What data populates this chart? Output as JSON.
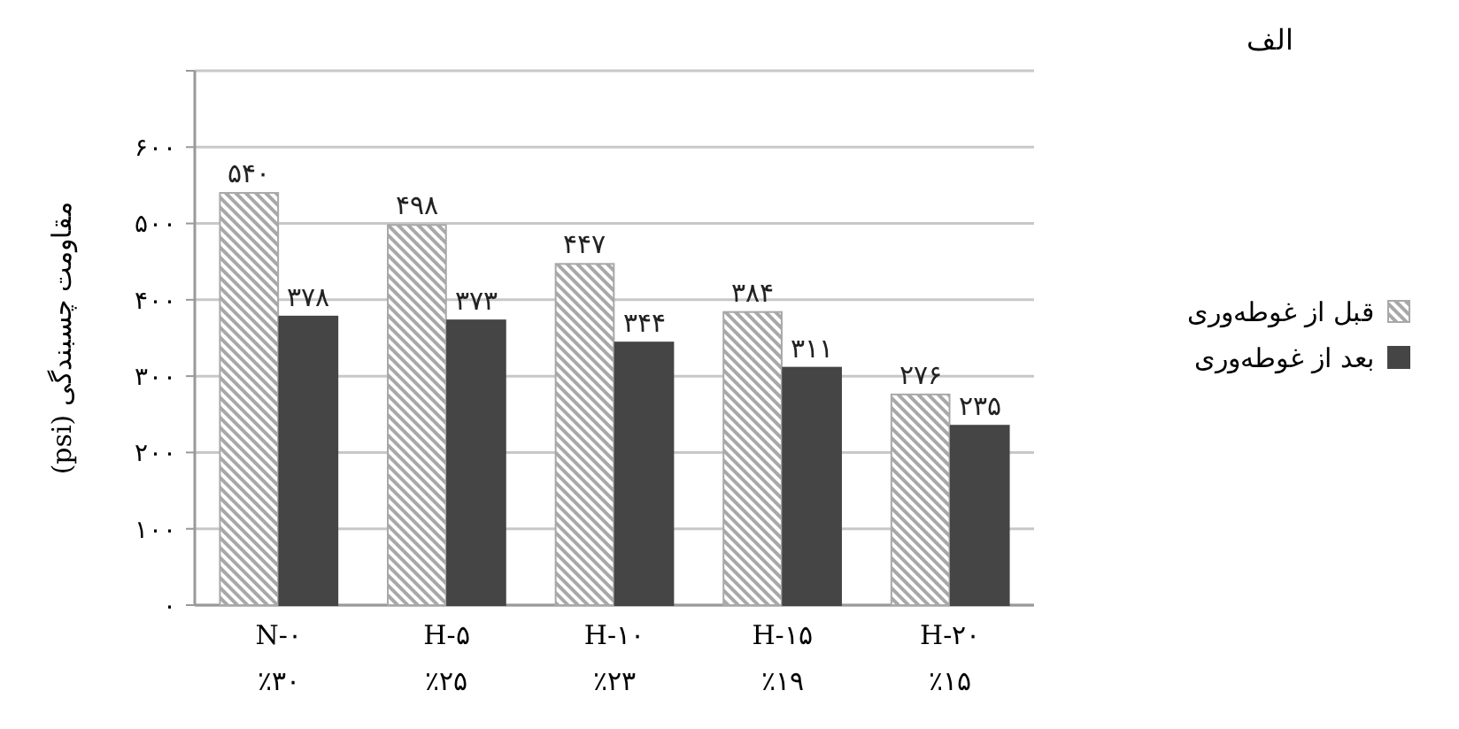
{
  "chart_data": {
    "type": "bar",
    "title": "الف",
    "ylabel": "مقاومت چسبندگی (psi)",
    "categories": [
      "N-۰\n٪۳۰",
      "H-۵\n٪۲۵",
      "H-۱۰\n٪۲۳",
      "H-۱۵\n٪۱۹",
      "H-۲۰\n٪۱۵"
    ],
    "series": [
      {
        "name": "قبل از غوطه‌وری",
        "color": "#a8a8a8",
        "values": [
          540,
          498,
          447,
          384,
          276
        ],
        "value_labels": [
          "۵۴۰",
          "۴۹۸",
          "۴۴۷",
          "۳۸۴",
          "۲۷۶"
        ]
      },
      {
        "name": "بعد از غوطه‌وری",
        "color": "#454545",
        "values": [
          378,
          373,
          344,
          311,
          235
        ],
        "value_labels": [
          "۳۷۸",
          "۳۷۳",
          "۳۴۴",
          "۳۱۱",
          "۲۳۵"
        ]
      }
    ],
    "ylim": [
      0,
      700
    ],
    "yticks": [
      {
        "value": 0,
        "label": "۰"
      },
      {
        "value": 100,
        "label": "۱۰۰"
      },
      {
        "value": 200,
        "label": "۲۰۰"
      },
      {
        "value": 300,
        "label": "۳۰۰"
      },
      {
        "value": 400,
        "label": "۴۰۰"
      },
      {
        "value": 500,
        "label": "۵۰۰"
      },
      {
        "value": 600,
        "label": "۶۰۰"
      },
      {
        "value": 700,
        "label": null
      }
    ],
    "grid": "y",
    "legend": "right"
  }
}
